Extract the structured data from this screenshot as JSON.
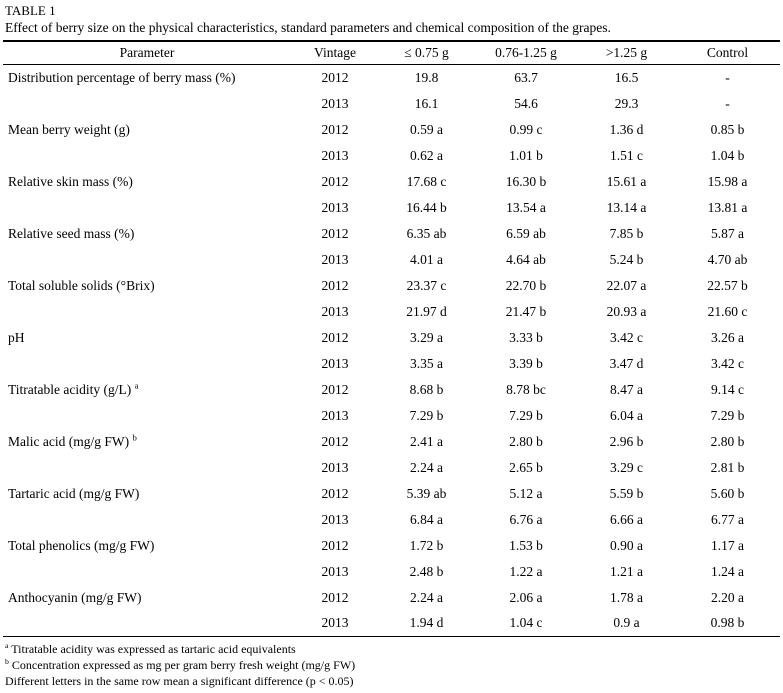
{
  "table": {
    "label": "TABLE 1",
    "caption": "Effect of berry size on the physical characteristics, standard parameters and chemical composition of the grapes.",
    "headers": [
      "Parameter",
      "Vintage",
      "≤ 0.75 g",
      "0.76-1.25 g",
      ">1.25 g",
      "Control"
    ],
    "rows": [
      {
        "parameter": "Distribution percentage of berry mass (%)",
        "sup": "",
        "vintage": "2012",
        "values": [
          "19.8",
          "63.7",
          "16.5",
          "-"
        ]
      },
      {
        "parameter": "",
        "sup": "",
        "vintage": "2013",
        "values": [
          "16.1",
          "54.6",
          "29.3",
          "-"
        ]
      },
      {
        "parameter": "Mean berry weight (g)",
        "sup": "",
        "vintage": "2012",
        "values": [
          "0.59 a",
          "0.99 c",
          "1.36 d",
          "0.85 b"
        ]
      },
      {
        "parameter": "",
        "sup": "",
        "vintage": "2013",
        "values": [
          "0.62 a",
          "1.01 b",
          "1.51 c",
          "1.04 b"
        ]
      },
      {
        "parameter": "Relative skin mass (%)",
        "sup": "",
        "vintage": "2012",
        "values": [
          "17.68 c",
          "16.30 b",
          "15.61 a",
          "15.98 a"
        ]
      },
      {
        "parameter": "",
        "sup": "",
        "vintage": "2013",
        "values": [
          "16.44 b",
          "13.54 a",
          "13.14 a",
          "13.81 a"
        ]
      },
      {
        "parameter": "Relative seed mass (%)",
        "sup": "",
        "vintage": "2012",
        "values": [
          "6.35 ab",
          "6.59 ab",
          "7.85 b",
          "5.87 a"
        ]
      },
      {
        "parameter": "",
        "sup": "",
        "vintage": "2013",
        "values": [
          "4.01 a",
          "4.64 ab",
          "5.24 b",
          "4.70 ab"
        ]
      },
      {
        "parameter": "Total soluble solids (°Brix)",
        "sup": "",
        "vintage": "2012",
        "values": [
          "23.37 c",
          "22.70 b",
          "22.07 a",
          "22.57 b"
        ]
      },
      {
        "parameter": "",
        "sup": "",
        "vintage": "2013",
        "values": [
          "21.97 d",
          "21.47 b",
          "20.93 a",
          "21.60 c"
        ]
      },
      {
        "parameter": "pH",
        "sup": "",
        "vintage": "2012",
        "values": [
          "3.29 a",
          "3.33 b",
          "3.42 c",
          "3.26 a"
        ]
      },
      {
        "parameter": "",
        "sup": "",
        "vintage": "2013",
        "values": [
          "3.35 a",
          "3.39 b",
          "3.47 d",
          "3.42 c"
        ]
      },
      {
        "parameter": "Titratable acidity (g/L)",
        "sup": "a",
        "vintage": "2012",
        "values": [
          "8.68 b",
          "8.78 bc",
          "8.47 a",
          "9.14 c"
        ]
      },
      {
        "parameter": "",
        "sup": "",
        "vintage": "2013",
        "values": [
          "7.29 b",
          "7.29 b",
          "6.04 a",
          "7.29 b"
        ]
      },
      {
        "parameter": "Malic acid (mg/g FW)",
        "sup": "b",
        "vintage": "2012",
        "values": [
          "2.41 a",
          "2.80 b",
          "2.96 b",
          "2.80 b"
        ]
      },
      {
        "parameter": "",
        "sup": "",
        "vintage": "2013",
        "values": [
          "2.24 a",
          "2.65 b",
          "3.29 c",
          "2.81 b"
        ]
      },
      {
        "parameter": "Tartaric acid (mg/g FW)",
        "sup": "",
        "vintage": "2012",
        "values": [
          "5.39 ab",
          "5.12 a",
          "5.59 b",
          "5.60 b"
        ]
      },
      {
        "parameter": "",
        "sup": "",
        "vintage": "2013",
        "values": [
          "6.84 a",
          "6.76 a",
          "6.66 a",
          "6.77 a"
        ]
      },
      {
        "parameter": "Total phenolics (mg/g FW)",
        "sup": "",
        "vintage": "2012",
        "values": [
          "1.72 b",
          "1.53 b",
          "0.90 a",
          "1.17 a"
        ]
      },
      {
        "parameter": "",
        "sup": "",
        "vintage": "2013",
        "values": [
          "2.48 b",
          "1.22 a",
          "1.21 a",
          "1.24 a"
        ]
      },
      {
        "parameter": "Anthocyanin (mg/g FW)",
        "sup": "",
        "vintage": "2012",
        "values": [
          "2.24 a",
          "2.06 a",
          "1.78 a",
          "2.20 a"
        ]
      },
      {
        "parameter": "",
        "sup": "",
        "vintage": "2013",
        "values": [
          "1.94 d",
          "1.04 c",
          "0.9 a",
          "0.98 b"
        ]
      }
    ],
    "footnotes": [
      {
        "sup": "a",
        "text": "Titratable acidity was expressed as tartaric acid equivalents"
      },
      {
        "sup": "b",
        "text": "Concentration expressed as mg per gram berry fresh weight (mg/g FW)"
      },
      {
        "sup": "",
        "text": "Different letters in the same row mean a significant difference (p < 0.05)"
      }
    ]
  }
}
